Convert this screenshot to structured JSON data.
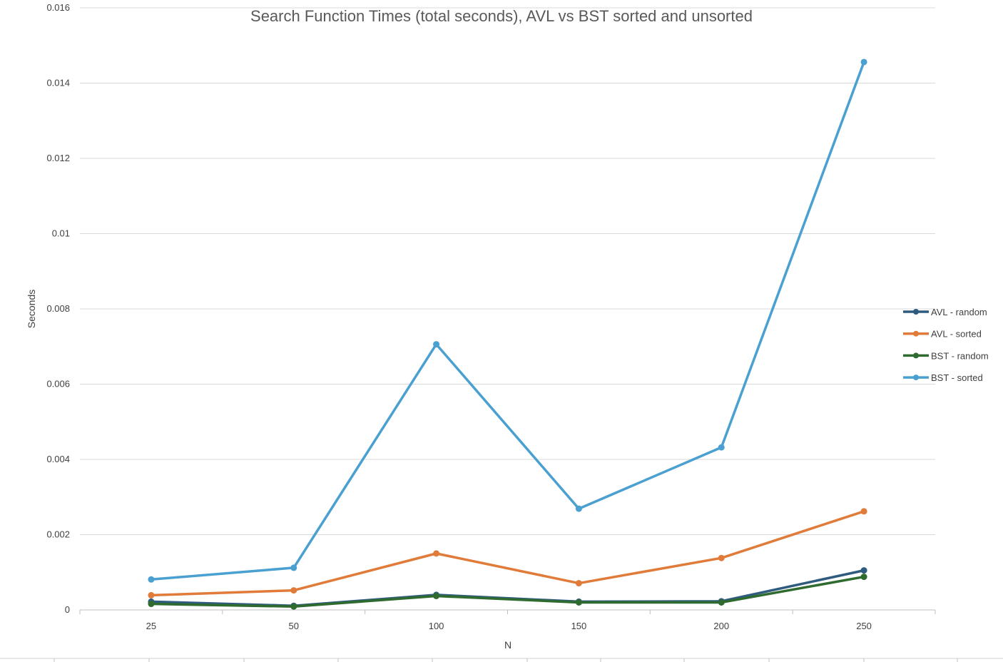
{
  "chart_data": {
    "type": "line",
    "title": "Search Function Times (total seconds), AVL vs BST sorted and unsorted",
    "xlabel": "N",
    "ylabel": "Seconds",
    "categories": [
      "25",
      "50",
      "100",
      "150",
      "200",
      "250"
    ],
    "y_ticks": [
      "0",
      "0.002",
      "0.004",
      "0.006",
      "0.008",
      "0.01",
      "0.012",
      "0.014",
      "0.016"
    ],
    "ylim": [
      0,
      0.016
    ],
    "grid": true,
    "legend_position": "right",
    "series": [
      {
        "name": "AVL - random",
        "color": "#2e5b7e",
        "values": [
          0.00022,
          0.00011,
          0.0004,
          0.00022,
          0.00023,
          0.00105
        ]
      },
      {
        "name": "AVL - sorted",
        "color": "#e07b39",
        "values": [
          0.00039,
          0.00052,
          0.0015,
          0.00071,
          0.00138,
          0.00262
        ]
      },
      {
        "name": "BST - random",
        "color": "#2f6b2f",
        "values": [
          0.00016,
          9e-05,
          0.00037,
          0.0002,
          0.0002,
          0.00088
        ]
      },
      {
        "name": "BST - sorted",
        "color": "#4aa0d0",
        "values": [
          0.00081,
          0.00112,
          0.00706,
          0.00269,
          0.00432,
          0.01456
        ]
      }
    ]
  }
}
